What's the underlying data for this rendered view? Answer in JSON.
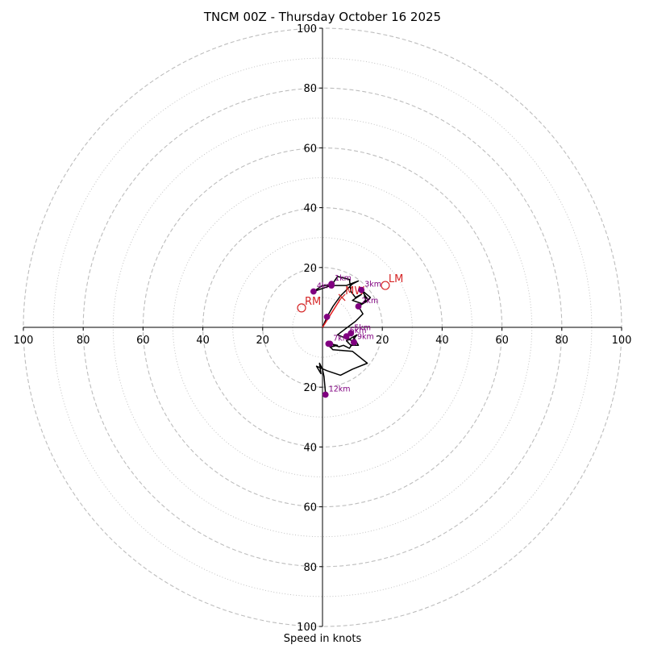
{
  "chart_data": {
    "type": "hodograph",
    "title": "TNCM 00Z - Thursday October 16 2025",
    "xlabel": "Speed in knots",
    "units": "knots",
    "range": [
      -100,
      100
    ],
    "rings_major": [
      20,
      40,
      60,
      80,
      100
    ],
    "rings_minor": [
      10,
      30,
      50,
      70,
      90
    ],
    "axis_ticks_x": [
      {
        "v": -100,
        "label": "100"
      },
      {
        "v": -80,
        "label": "80"
      },
      {
        "v": -60,
        "label": "60"
      },
      {
        "v": -40,
        "label": "40"
      },
      {
        "v": -20,
        "label": "20"
      },
      {
        "v": 20,
        "label": "20"
      },
      {
        "v": 40,
        "label": "40"
      },
      {
        "v": 60,
        "label": "60"
      },
      {
        "v": 80,
        "label": "80"
      },
      {
        "v": 100,
        "label": "100"
      }
    ],
    "axis_ticks_y": [
      {
        "v": 100,
        "label": "100"
      },
      {
        "v": 80,
        "label": "80"
      },
      {
        "v": 60,
        "label": "60"
      },
      {
        "v": 40,
        "label": "40"
      },
      {
        "v": 20,
        "label": "20"
      },
      {
        "v": -20,
        "label": "20"
      },
      {
        "v": -40,
        "label": "40"
      },
      {
        "v": -60,
        "label": "60"
      },
      {
        "v": -80,
        "label": "80"
      },
      {
        "v": -100,
        "label": "100"
      }
    ],
    "trace": [
      [
        0,
        0
      ],
      [
        1.5,
        3.5
      ],
      [
        3.5,
        7
      ],
      [
        6,
        10.5
      ],
      [
        8,
        12.5
      ],
      [
        10,
        14.5
      ],
      [
        12,
        15.5
      ],
      [
        8,
        14
      ],
      [
        4,
        14
      ],
      [
        0,
        14
      ],
      [
        -3,
        12
      ],
      [
        3,
        14
      ],
      [
        5,
        17
      ],
      [
        9,
        16
      ],
      [
        9.5,
        12
      ],
      [
        11,
        10
      ],
      [
        13,
        11
      ],
      [
        10,
        9
      ],
      [
        13,
        8
      ],
      [
        12,
        7
      ],
      [
        14.5,
        8.5
      ],
      [
        16,
        10
      ],
      [
        13,
        12.5
      ],
      [
        15,
        9.5
      ],
      [
        14,
        10.5
      ],
      [
        14.5,
        9
      ],
      [
        12,
        7
      ],
      [
        13.5,
        4.5
      ],
      [
        11,
        2
      ],
      [
        9,
        0.5
      ],
      [
        7,
        -1
      ],
      [
        5,
        -2.5
      ],
      [
        10,
        -4.5
      ],
      [
        11.5,
        -2.5
      ],
      [
        8,
        -4.5
      ],
      [
        9.5,
        -6
      ],
      [
        12,
        -6
      ],
      [
        10.5,
        -3.5
      ],
      [
        10,
        -5.5
      ],
      [
        9,
        -7
      ],
      [
        7,
        -6
      ],
      [
        5.5,
        -6.5
      ],
      [
        2.5,
        -5.5
      ],
      [
        5,
        -6
      ],
      [
        3,
        -6.5
      ],
      [
        2,
        -6
      ],
      [
        3.5,
        -7.5
      ],
      [
        10,
        -8
      ],
      [
        15,
        -12
      ],
      [
        10,
        -14
      ],
      [
        6,
        -16
      ],
      [
        1.5,
        -14.5
      ],
      [
        -2,
        -13
      ],
      [
        -0.5,
        -15.5
      ],
      [
        -1,
        -12
      ],
      [
        0,
        -14
      ],
      [
        0.5,
        -16.5
      ],
      [
        1,
        -22
      ]
    ],
    "height_markers": [
      {
        "label": "1km",
        "u": 3,
        "v": 14.5
      },
      {
        "label": "",
        "u": 1.5,
        "v": 3.5
      },
      {
        "label": "2km",
        "u": 12,
        "v": 7
      },
      {
        "label": "3km",
        "u": 13,
        "v": 12.5
      },
      {
        "label": "4km",
        "u": -3,
        "v": 12
      },
      {
        "label": "",
        "u": 3,
        "v": 14
      },
      {
        "label": "5km",
        "u": 9.5,
        "v": -2
      },
      {
        "label": "6km",
        "u": 8,
        "v": -3
      },
      {
        "label": "9km",
        "u": 10.5,
        "v": -5
      },
      {
        "label": "",
        "u": 10.5,
        "v": -5
      },
      {
        "label": "7km",
        "u": 2.5,
        "v": -5.5
      },
      {
        "label": "",
        "u": 2,
        "v": -5.5
      },
      {
        "label": "12km",
        "u": 1,
        "v": -22.5
      }
    ],
    "shear_vector": {
      "from": [
        0,
        0
      ],
      "to": [
        6,
        9.5
      ]
    },
    "storm_motions": [
      {
        "label": "RM",
        "u": -7,
        "v": 6.5
      },
      {
        "label": "LM",
        "u": 21,
        "v": 14
      },
      {
        "label": "MW",
        "u": 6.5,
        "v": 10
      }
    ],
    "colors": {
      "ring": "#bdbdbd",
      "axis": "#000000",
      "trace": "#000000",
      "marker": "#800080",
      "storm": "#d62728",
      "shear": "#e31a1c"
    }
  }
}
